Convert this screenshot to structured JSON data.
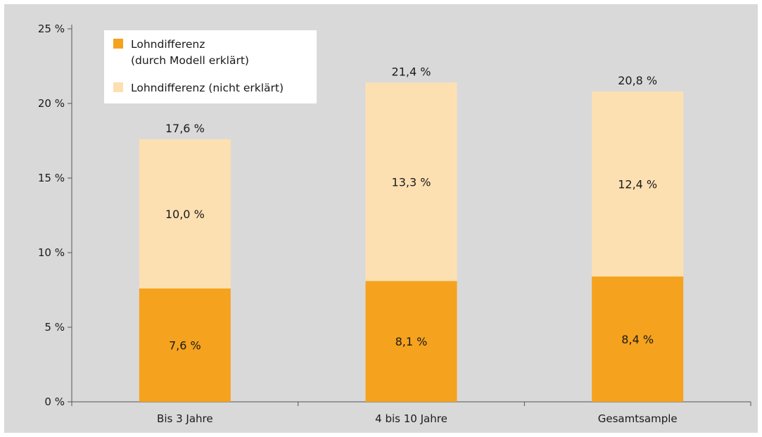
{
  "chart_data": {
    "type": "bar",
    "stacked": true,
    "categories": [
      "Bis 3 Jahre",
      "4 bis 10 Jahre",
      "Gesamtsample"
    ],
    "series": [
      {
        "name": "Lohndifferenz (durch Modell erklärt)",
        "legend_lines": [
          "Lohndifferenz",
          "(durch Modell erklärt)"
        ],
        "values": [
          7.6,
          8.1,
          8.4
        ],
        "labels": [
          "7,6 %",
          "8,1 %",
          "8,4 %"
        ],
        "color": "#f5a21e"
      },
      {
        "name": "Lohndifferenz (nicht erklärt)",
        "legend_lines": [
          "Lohndifferenz (nicht erklärt)"
        ],
        "values": [
          10.0,
          13.3,
          12.4
        ],
        "labels": [
          "10,0 %",
          "13,3 %",
          "12,4 %"
        ],
        "color": "#fde0b2"
      }
    ],
    "totals": [
      17.6,
      21.4,
      20.8
    ],
    "total_labels": [
      "17,6 %",
      "21,4 %",
      "20,8 %"
    ],
    "ylim": [
      0,
      25
    ],
    "yticks": [
      0,
      5,
      10,
      15,
      20,
      25
    ],
    "ytick_labels": [
      "0 %",
      "5 %",
      "10 %",
      "15 %",
      "20 %",
      "25 %"
    ],
    "title": "",
    "xlabel": "",
    "ylabel": "",
    "grid": false,
    "legend_position": "top-left",
    "background": "#d9d9d9"
  }
}
